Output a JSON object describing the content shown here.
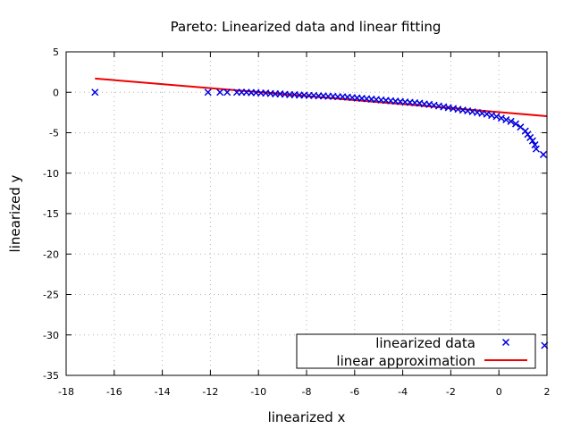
{
  "chart_data": {
    "type": "scatter",
    "title": "Pareto: Linearized data and linear fitting",
    "xlabel": "linearized x",
    "ylabel": "linearized y",
    "xlim": [
      -18,
      2
    ],
    "ylim": [
      -35,
      5
    ],
    "x_ticks": [
      -18,
      -16,
      -14,
      -12,
      -10,
      -8,
      -6,
      -4,
      -2,
      0,
      2
    ],
    "y_ticks": [
      5,
      0,
      -5,
      -10,
      -15,
      -20,
      -25,
      -30,
      -35
    ],
    "grid": true,
    "legend_position": "bottom-right",
    "colors": {
      "data": "#0000e0",
      "fit": "#ee0000"
    },
    "series": [
      {
        "name": "linearized data",
        "kind": "scatter",
        "marker": "x",
        "points": [
          [
            -16.8,
            0.0
          ],
          [
            -12.1,
            0.0
          ],
          [
            -11.6,
            0.0
          ],
          [
            -11.3,
            0.0
          ],
          [
            -10.9,
            0.0
          ],
          [
            -10.7,
            0.0
          ],
          [
            -10.5,
            0.0
          ],
          [
            -10.3,
            -0.05
          ],
          [
            -10.1,
            -0.05
          ],
          [
            -9.9,
            -0.1
          ],
          [
            -9.7,
            -0.1
          ],
          [
            -9.5,
            -0.15
          ],
          [
            -9.3,
            -0.2
          ],
          [
            -9.1,
            -0.2
          ],
          [
            -8.9,
            -0.25
          ],
          [
            -8.7,
            -0.3
          ],
          [
            -8.5,
            -0.3
          ],
          [
            -8.3,
            -0.35
          ],
          [
            -8.1,
            -0.35
          ],
          [
            -7.9,
            -0.4
          ],
          [
            -7.7,
            -0.4
          ],
          [
            -7.5,
            -0.45
          ],
          [
            -7.3,
            -0.45
          ],
          [
            -7.1,
            -0.5
          ],
          [
            -6.9,
            -0.5
          ],
          [
            -6.7,
            -0.55
          ],
          [
            -6.5,
            -0.55
          ],
          [
            -6.3,
            -0.6
          ],
          [
            -6.1,
            -0.65
          ],
          [
            -5.9,
            -0.7
          ],
          [
            -5.7,
            -0.75
          ],
          [
            -5.5,
            -0.8
          ],
          [
            -5.3,
            -0.85
          ],
          [
            -5.1,
            -0.9
          ],
          [
            -4.9,
            -0.95
          ],
          [
            -4.7,
            -1.0
          ],
          [
            -4.5,
            -1.05
          ],
          [
            -4.3,
            -1.1
          ],
          [
            -4.1,
            -1.15
          ],
          [
            -3.9,
            -1.2
          ],
          [
            -3.7,
            -1.25
          ],
          [
            -3.5,
            -1.3
          ],
          [
            -3.3,
            -1.35
          ],
          [
            -3.1,
            -1.45
          ],
          [
            -2.9,
            -1.5
          ],
          [
            -2.7,
            -1.6
          ],
          [
            -2.5,
            -1.7
          ],
          [
            -2.3,
            -1.8
          ],
          [
            -2.1,
            -1.9
          ],
          [
            -1.9,
            -2.0
          ],
          [
            -1.7,
            -2.1
          ],
          [
            -1.5,
            -2.2
          ],
          [
            -1.3,
            -2.3
          ],
          [
            -1.1,
            -2.4
          ],
          [
            -0.9,
            -2.5
          ],
          [
            -0.7,
            -2.6
          ],
          [
            -0.5,
            -2.7
          ],
          [
            -0.3,
            -2.85
          ],
          [
            -0.1,
            -3.0
          ],
          [
            0.1,
            -3.2
          ],
          [
            0.3,
            -3.4
          ],
          [
            0.5,
            -3.6
          ],
          [
            0.7,
            -3.9
          ],
          [
            0.9,
            -4.3
          ],
          [
            1.1,
            -4.8
          ],
          [
            1.2,
            -5.2
          ],
          [
            1.3,
            -5.6
          ],
          [
            1.4,
            -6.0
          ],
          [
            1.5,
            -6.5
          ],
          [
            1.55,
            -7.0
          ],
          [
            1.85,
            -7.7
          ],
          [
            1.9,
            -31.3
          ]
        ]
      },
      {
        "name": "linear approximation",
        "kind": "line",
        "points": [
          [
            -16.8,
            1.7
          ],
          [
            2.0,
            -2.95
          ]
        ]
      }
    ]
  }
}
